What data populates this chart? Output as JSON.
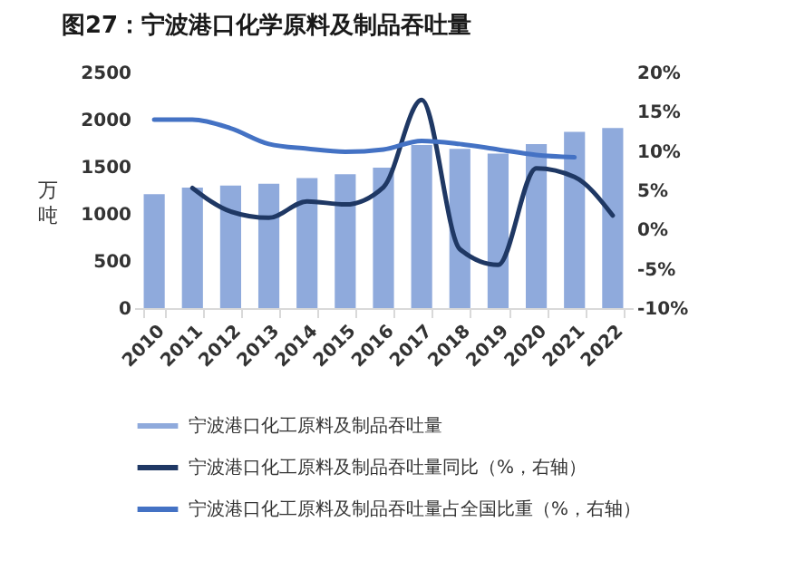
{
  "chart_data": {
    "type": "bar",
    "title": "图27：宁波港口化学原料及制品吞吐量",
    "categories": [
      "2010",
      "2011",
      "2012",
      "2013",
      "2014",
      "2015",
      "2016",
      "2017",
      "2018",
      "2019",
      "2020",
      "2021",
      "2022"
    ],
    "ylabel": "万吨",
    "series": [
      {
        "name": "宁波港口化工原料及制品吞吐量",
        "color": "#8faadc",
        "values": [
          1210,
          1280,
          1300,
          1320,
          1380,
          1420,
          1490,
          1730,
          1690,
          1640,
          1740,
          1870,
          1910
        ]
      },
      {
        "name": "宁波港口化工原料及制品吞吐量同比（%，右轴）",
        "type": "line",
        "axis": "y2",
        "color": "#1f3864",
        "values": [
          null,
          5.3,
          2.3,
          1.5,
          3.6,
          3.2,
          5.4,
          16.5,
          -2.5,
          -4.5,
          7.8,
          6.7,
          1.8
        ]
      },
      {
        "name": "宁波港口化工原料及制品吞吐量占全国比重（%，右轴）",
        "type": "line",
        "axis": "y2",
        "color": "#4472c4",
        "values": [
          14.0,
          14.0,
          12.9,
          10.9,
          10.3,
          9.9,
          10.2,
          11.3,
          10.9,
          10.2,
          9.5,
          9.2,
          null
        ]
      }
    ],
    "ylim": [
      0,
      2500
    ],
    "yticks": [
      0,
      500,
      1000,
      1500,
      2000,
      2500
    ],
    "y2lim": [
      -10,
      20
    ],
    "y2ticks": [
      {
        "value": -10,
        "label": "-10%"
      },
      {
        "value": -5,
        "label": "-5%"
      },
      {
        "value": 0,
        "label": "0%"
      },
      {
        "value": 5,
        "label": "5%"
      },
      {
        "value": 10,
        "label": "10%"
      },
      {
        "value": 15,
        "label": "15%"
      },
      {
        "value": 20,
        "label": "20%"
      }
    ],
    "grid": false,
    "legend": "bottom",
    "marker": "none",
    "line_style": "solid"
  }
}
